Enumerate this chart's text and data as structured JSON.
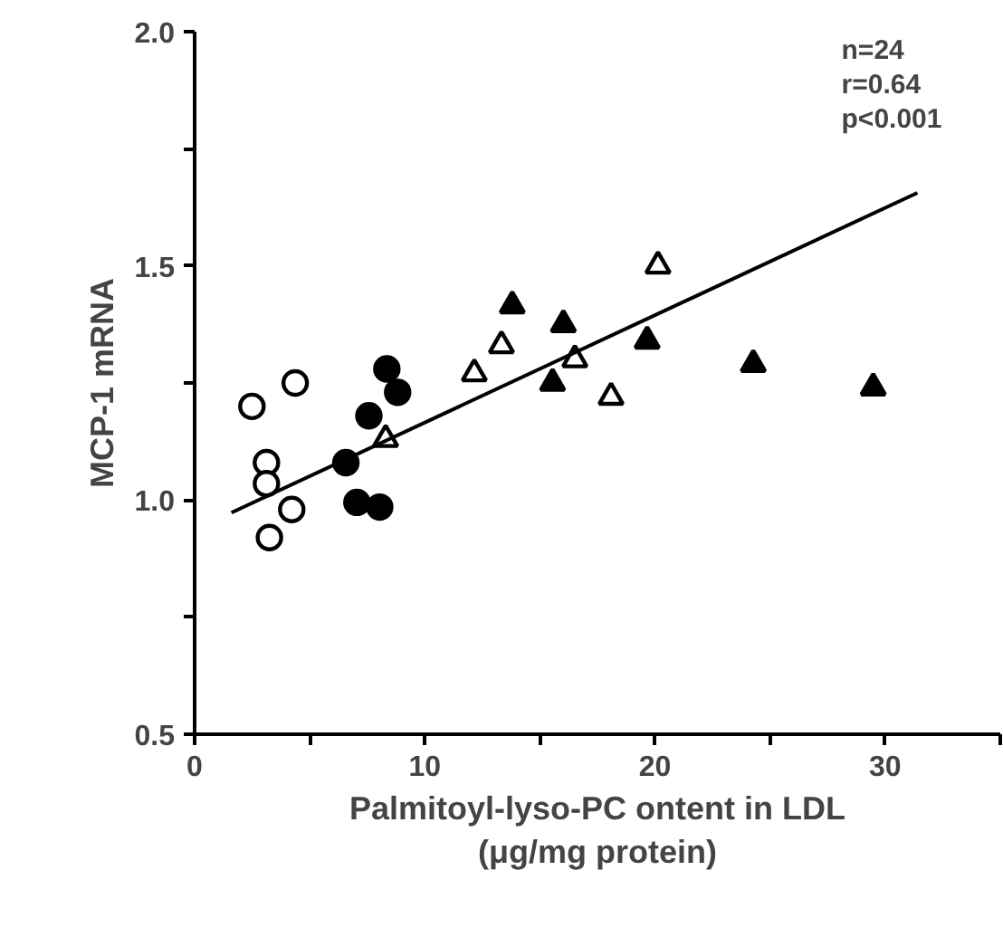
{
  "chart_data": {
    "type": "scatter",
    "xlabel": "Palmitoyl-lyso-PC ontent in LDL\n(μg/mg protein)",
    "ylabel": "MCP-1 mRNA",
    "annotations": [
      "n=24",
      "r=0.64",
      "p<0.001"
    ],
    "xlim": [
      0,
      35
    ],
    "xticks": [
      0,
      {
        "value": 5,
        "label": null
      },
      10,
      {
        "value": 15,
        "label": null
      },
      20,
      {
        "value": 25,
        "label": null
      },
      30,
      {
        "value": 35,
        "label": null
      }
    ],
    "ylim": [
      0.5,
      2.0
    ],
    "yticks": [
      0.5,
      {
        "value": 0.75,
        "label": null
      },
      {
        "value": 1.0,
        "label": "1.0"
      },
      {
        "value": 1.25,
        "label": null
      },
      1.5,
      {
        "value": 1.75,
        "label": null
      },
      {
        "value": 2.0,
        "label": "2.0"
      }
    ],
    "grid": false,
    "series": [
      {
        "marker": "circle",
        "color": "#ffffff",
        "x": [
          2.49,
          4.37,
          3.12,
          3.12,
          4.22,
          3.25
        ],
        "values": [
          1.2,
          1.25,
          1.08,
          1.035,
          0.98,
          0.92
        ]
      },
      {
        "marker": "circle",
        "color": "#000000",
        "x": [
          8.35,
          8.82,
          7.57,
          6.57,
          7.05,
          8.04
        ],
        "values": [
          1.28,
          1.23,
          1.18,
          1.08,
          0.995,
          0.985
        ]
      },
      {
        "marker": "triangle",
        "color": "#ffffff",
        "x": [
          8.3,
          12.15,
          13.33,
          20.13,
          16.52,
          18.09
        ],
        "values": [
          1.13,
          1.27,
          1.33,
          1.5,
          1.3,
          1.22
        ]
      },
      {
        "marker": "triangle",
        "color": "#000000",
        "x": [
          13.8,
          16.02,
          15.55,
          19.66,
          24.27,
          29.48
        ],
        "values": [
          1.415,
          1.375,
          1.25,
          1.34,
          1.29,
          1.24
        ]
      },
      {
        "type": "line",
        "line_style": "solid",
        "color": "#000000",
        "x": [
          1.6,
          31.4
        ],
        "values": [
          0.973,
          1.656
        ]
      }
    ]
  }
}
